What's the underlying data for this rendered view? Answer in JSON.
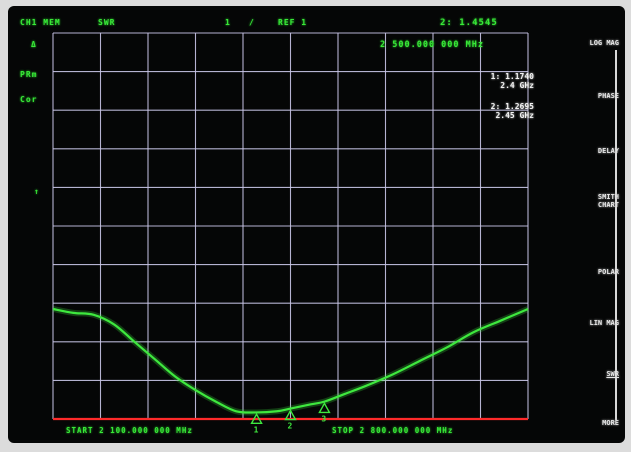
{
  "header": {
    "channel": "CH1 MEM",
    "format": "SWR",
    "scale": "1",
    "ref_slash": "/",
    "ref": "REF 1",
    "marker_readout": "2: 1.4545"
  },
  "marker_freq": "2 500.000 000 MHz",
  "left_labels": {
    "delta": "Δ",
    "prm": "PRm",
    "cor": "Cor",
    "ref_arrow": "↑"
  },
  "marker_list": [
    {
      "label": "1:",
      "value": "1.1740",
      "freq": "2.4 GHz"
    },
    {
      "label": "2:",
      "value": "1.2695",
      "freq": "2.45 GHz"
    }
  ],
  "footer": {
    "start": "START 2 100.000 000 MHz",
    "stop": "STOP 2 800.000 000 MHz"
  },
  "softkeys": [
    {
      "label": "LOG MAG"
    },
    {
      "label": "PHASE"
    },
    {
      "label": "DELAY"
    },
    {
      "label": "SMITH\nCHART"
    },
    {
      "label": "POLAR"
    },
    {
      "label": "LIN MAG"
    },
    {
      "label": "SWR",
      "selected": true
    },
    {
      "label": "MORE"
    }
  ],
  "chart_data": {
    "type": "line",
    "title": "",
    "xlabel": "",
    "ylabel": "",
    "x_unit": "MHz",
    "xlim": [
      2100,
      2800
    ],
    "ylim": [
      1,
      11
    ],
    "y_scale_per_div": 1,
    "reference_value": 1,
    "grid": true,
    "series": [
      {
        "x": [
          2100,
          2130,
          2160,
          2190,
          2220,
          2250,
          2280,
          2310,
          2340,
          2370,
          2400,
          2430,
          2450,
          2480,
          2500,
          2530,
          2560,
          2600,
          2640,
          2680,
          2720,
          2760,
          2800
        ],
        "values": [
          3.85,
          3.75,
          3.7,
          3.45,
          3.0,
          2.55,
          2.1,
          1.75,
          1.45,
          1.2,
          1.17,
          1.2,
          1.27,
          1.38,
          1.45,
          1.65,
          1.85,
          2.15,
          2.5,
          2.85,
          3.25,
          3.55,
          3.85
        ]
      }
    ],
    "markers": [
      {
        "id": 1,
        "x": 2400,
        "value": 1.174
      },
      {
        "id": 2,
        "x": 2450,
        "value": 1.2695
      },
      {
        "id": 3,
        "x": 2500,
        "value": 1.4545
      }
    ],
    "colors": {
      "trace": "#3ee83e",
      "grid": "#c9c6e8",
      "reference": "#ff2a2a",
      "marker": "#3ee83e"
    }
  }
}
